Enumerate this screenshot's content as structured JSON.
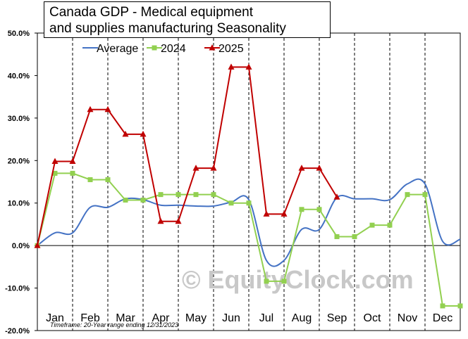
{
  "chart_data": {
    "type": "line",
    "title_lines": [
      "Canada  GDP - Medical equipment",
      "and supplies manufacturing  Seasonality"
    ],
    "categories": [
      "Jan",
      "Feb",
      "Mar",
      "Apr",
      "May",
      "Jun",
      "Jul",
      "Aug",
      "Sep",
      "Oct",
      "Nov",
      "Dec"
    ],
    "yticks": [
      -20,
      -10,
      0,
      10,
      20,
      30,
      40,
      50
    ],
    "ytick_labels": [
      "-20.0%",
      "-10.0%",
      "0.0%",
      "10.0%",
      "20.0%",
      "30.0%",
      "40.0%",
      "50.0%"
    ],
    "ylim": [
      -20,
      50
    ],
    "x_range": [
      0,
      12
    ],
    "grid": "vertical dashed lines at month boundaries",
    "legend_position": "top",
    "footnote": "Timeframe: 20-Year range ending 12/31/2023",
    "watermark": "© EquityClock.com",
    "series": [
      {
        "name": "Average",
        "style": "smooth line",
        "color": "#4472c4",
        "x": [
          0,
          0.5,
          1,
          1.5,
          2,
          2.5,
          3,
          3.5,
          4,
          4.5,
          5,
          5.5,
          6,
          6.5,
          7,
          7.5,
          8,
          8.5,
          9,
          9.5,
          10,
          10.5,
          11,
          11.5,
          12
        ],
        "values": [
          0,
          3,
          3,
          9,
          9,
          11,
          10.8,
          9.5,
          9.5,
          9.3,
          9.3,
          10.2,
          10.8,
          -3.5,
          -3.5,
          3.8,
          3.8,
          11.3,
          11,
          11,
          10.8,
          14.5,
          14.5,
          1,
          1.5
        ]
      },
      {
        "name": "2024",
        "style": "step line with square markers",
        "color": "#92d050",
        "x": [
          0,
          0.5,
          1,
          1.5,
          2,
          2.5,
          3,
          3.5,
          4,
          4.5,
          5,
          5.5,
          6,
          6.5,
          7,
          7.5,
          8,
          8.5,
          9,
          9.5,
          10,
          10.5,
          11,
          11.5,
          12
        ],
        "values": [
          0,
          17,
          17,
          15.5,
          15.5,
          10.7,
          10.7,
          12,
          12,
          12,
          12,
          10,
          10,
          -8.4,
          -8.4,
          8.5,
          8.5,
          2.1,
          2.1,
          4.8,
          4.8,
          12,
          12,
          -14.2,
          -14.2
        ]
      },
      {
        "name": "2025",
        "style": "step line with triangle markers",
        "color": "#c00000",
        "x": [
          0,
          0.5,
          1,
          1.5,
          2,
          2.5,
          3,
          3.5,
          4,
          4.5,
          5,
          5.5,
          6,
          6.5,
          7,
          7.5,
          8,
          8.5
        ],
        "values": [
          0,
          19.8,
          19.8,
          32,
          32,
          26.2,
          26.2,
          5.7,
          5.7,
          18.2,
          18.2,
          42,
          42,
          7.4,
          7.4,
          18.2,
          18.2,
          11.4
        ]
      }
    ]
  }
}
